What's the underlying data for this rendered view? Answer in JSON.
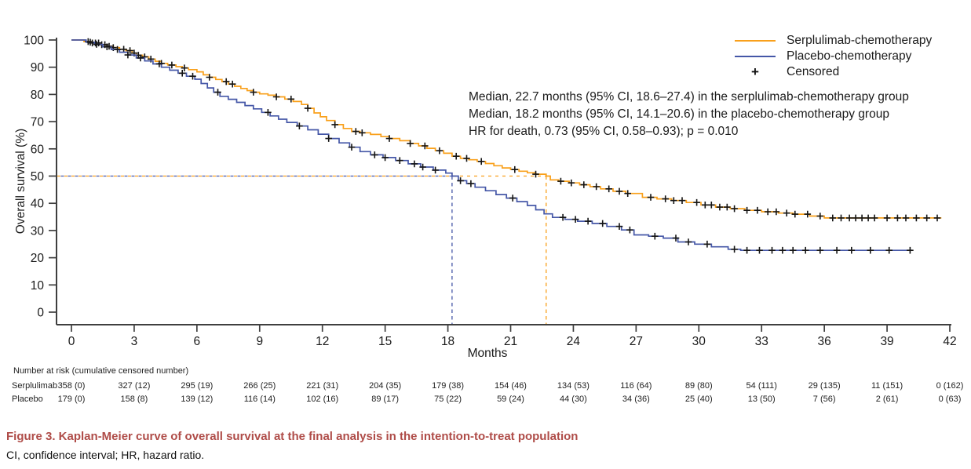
{
  "chart_data": {
    "type": "line",
    "subtype": "kaplan-meier-step",
    "xlabel": "Months",
    "ylabel": "Overall survival (%)",
    "xlim": [
      0,
      42
    ],
    "ylim": [
      0,
      100
    ],
    "x_ticks": [
      0,
      3,
      6,
      9,
      12,
      15,
      18,
      21,
      24,
      27,
      30,
      33,
      36,
      39,
      42
    ],
    "y_ticks": [
      0,
      10,
      20,
      30,
      40,
      50,
      60,
      70,
      80,
      90,
      100
    ],
    "grid": false,
    "legend_position": "top-right",
    "median_reference_percent": 50,
    "series": [
      {
        "name": "Serplulimab-chemotherapy",
        "color": "#F9A01B",
        "median_months": 22.7,
        "steps": [
          [
            0,
            100
          ],
          [
            0.6,
            99.4
          ],
          [
            1,
            98.9
          ],
          [
            1.4,
            98.3
          ],
          [
            1.7,
            97.7
          ],
          [
            2,
            97.2
          ],
          [
            2.3,
            96.6
          ],
          [
            2.6,
            96.1
          ],
          [
            2.9,
            95.2
          ],
          [
            3.1,
            94.4
          ],
          [
            3.4,
            93.8
          ],
          [
            3.7,
            93
          ],
          [
            4,
            92.2
          ],
          [
            4.3,
            91.4
          ],
          [
            4.6,
            90.8
          ],
          [
            5,
            90.2
          ],
          [
            5.3,
            89.7
          ],
          [
            5.6,
            89.1
          ],
          [
            6,
            88.3
          ],
          [
            6.3,
            87.2
          ],
          [
            6.6,
            86.3
          ],
          [
            6.9,
            85.5
          ],
          [
            7.2,
            84.7
          ],
          [
            7.5,
            83.8
          ],
          [
            7.8,
            83
          ],
          [
            8.1,
            82.2
          ],
          [
            8.4,
            81.4
          ],
          [
            8.7,
            80.8
          ],
          [
            9,
            80.2
          ],
          [
            9.4,
            79.7
          ],
          [
            9.8,
            79.1
          ],
          [
            10.2,
            78.3
          ],
          [
            10.6,
            77.4
          ],
          [
            11,
            76.3
          ],
          [
            11.3,
            74.9
          ],
          [
            11.6,
            73.2
          ],
          [
            11.9,
            71.8
          ],
          [
            12.2,
            70.4
          ],
          [
            12.6,
            68.9
          ],
          [
            13,
            67.5
          ],
          [
            13.4,
            66.4
          ],
          [
            13.8,
            65.9
          ],
          [
            14.3,
            65.3
          ],
          [
            14.8,
            64.5
          ],
          [
            15.2,
            63.8
          ],
          [
            15.7,
            63
          ],
          [
            16.2,
            62
          ],
          [
            16.6,
            61.1
          ],
          [
            17,
            60.2
          ],
          [
            17.4,
            59.3
          ],
          [
            17.8,
            58.4
          ],
          [
            18.2,
            57.3
          ],
          [
            18.6,
            56.5
          ],
          [
            19,
            56
          ],
          [
            19.4,
            55.4
          ],
          [
            19.8,
            54.6
          ],
          [
            20.2,
            53.8
          ],
          [
            20.6,
            53
          ],
          [
            21,
            52.4
          ],
          [
            21.4,
            51.8
          ],
          [
            21.8,
            51.2
          ],
          [
            22.2,
            50.7
          ],
          [
            22.7,
            50
          ],
          [
            22.9,
            48.6
          ],
          [
            23.3,
            48.1
          ],
          [
            23.8,
            47.5
          ],
          [
            24.3,
            46.8
          ],
          [
            24.8,
            46.1
          ],
          [
            25.3,
            45.3
          ],
          [
            25.9,
            44.4
          ],
          [
            26.5,
            43.6
          ],
          [
            27.3,
            42.2
          ],
          [
            28,
            41.6
          ],
          [
            28.7,
            41
          ],
          [
            29.4,
            40.3
          ],
          [
            30.1,
            39.4
          ],
          [
            30.8,
            38.6
          ],
          [
            31.5,
            38
          ],
          [
            32.2,
            37.4
          ],
          [
            33,
            36.9
          ],
          [
            33.8,
            36.4
          ],
          [
            34.5,
            36
          ],
          [
            35.3,
            35.3
          ],
          [
            36,
            34.6
          ],
          [
            41.6,
            34.6
          ]
        ],
        "censor_months": [
          0.8,
          1,
          1.15,
          1.3,
          1.45,
          1.6,
          1.8,
          2,
          2.5,
          2.8,
          3,
          3.2,
          3.5,
          3.8,
          4.3,
          4.8,
          5.4,
          6.6,
          7.4,
          7.7,
          8.7,
          9.8,
          10.5,
          11.3,
          12.6,
          13.6,
          13.9,
          15.2,
          16.2,
          16.9,
          17.6,
          18.4,
          18.9,
          19.6,
          21.2,
          22.2,
          23.4,
          23.9,
          24.5,
          25.1,
          25.7,
          26.2,
          26.6,
          27.7,
          28.4,
          28.8,
          29.2,
          29.9,
          30.3,
          30.6,
          31,
          31.35,
          31.7,
          32.3,
          32.8,
          33.3,
          33.7,
          34.2,
          34.6,
          35.2,
          35.8,
          36.4,
          36.8,
          37.2,
          37.5,
          37.8,
          38.1,
          38.4,
          39,
          39.5,
          39.9,
          40.4,
          40.9,
          41.4
        ]
      },
      {
        "name": "Placebo-chemotherapy",
        "color": "#4557A7",
        "median_months": 18.2,
        "steps": [
          [
            0,
            100
          ],
          [
            0.7,
            99.2
          ],
          [
            1.1,
            98.4
          ],
          [
            1.5,
            97.5
          ],
          [
            1.9,
            96.5
          ],
          [
            2.3,
            95.5
          ],
          [
            2.7,
            94.5
          ],
          [
            3.1,
            93.4
          ],
          [
            3.5,
            92.3
          ],
          [
            3.9,
            91.2
          ],
          [
            4.3,
            90
          ],
          [
            4.7,
            88.9
          ],
          [
            5.1,
            87.8
          ],
          [
            5.5,
            86.7
          ],
          [
            5.9,
            85.6
          ],
          [
            6.2,
            84
          ],
          [
            6.5,
            82.4
          ],
          [
            6.8,
            80.8
          ],
          [
            7.1,
            79.3
          ],
          [
            7.5,
            78.2
          ],
          [
            7.9,
            77.1
          ],
          [
            8.3,
            75.9
          ],
          [
            8.7,
            74.7
          ],
          [
            9.1,
            73.4
          ],
          [
            9.5,
            72.1
          ],
          [
            9.9,
            70.9
          ],
          [
            10.3,
            69.7
          ],
          [
            10.8,
            68.4
          ],
          [
            11.3,
            67
          ],
          [
            11.8,
            65.4
          ],
          [
            12.3,
            63.8
          ],
          [
            12.8,
            62.2
          ],
          [
            13.3,
            60.6
          ],
          [
            13.8,
            59
          ],
          [
            14.3,
            57.8
          ],
          [
            14.9,
            56.8
          ],
          [
            15.5,
            55.7
          ],
          [
            16.1,
            54.5
          ],
          [
            16.7,
            53.3
          ],
          [
            17.3,
            52.2
          ],
          [
            17.9,
            51.1
          ],
          [
            18.2,
            50
          ],
          [
            18.5,
            48.3
          ],
          [
            18.9,
            47.2
          ],
          [
            19.3,
            45.9
          ],
          [
            19.8,
            44.6
          ],
          [
            20.3,
            43.2
          ],
          [
            20.8,
            41.9
          ],
          [
            21.3,
            40.6
          ],
          [
            21.8,
            39.2
          ],
          [
            22.2,
            37.6
          ],
          [
            22.6,
            36.1
          ],
          [
            23,
            34.8
          ],
          [
            23.6,
            34.1
          ],
          [
            24.2,
            33.4
          ],
          [
            24.9,
            32.6
          ],
          [
            25.6,
            31.5
          ],
          [
            26.3,
            30.2
          ],
          [
            26.9,
            28.4
          ],
          [
            27.6,
            27.9
          ],
          [
            28.3,
            27.2
          ],
          [
            29,
            25.8
          ],
          [
            29.8,
            25
          ],
          [
            30.6,
            24
          ],
          [
            31.4,
            23.1
          ],
          [
            32,
            22.7
          ],
          [
            40.2,
            22.7
          ]
        ],
        "censor_months": [
          0.9,
          1.2,
          1.7,
          2.2,
          2.7,
          3.3,
          4.2,
          5.3,
          5.8,
          7,
          9.4,
          10.9,
          12.3,
          13.4,
          14.5,
          15,
          15.7,
          16.4,
          16.8,
          17.4,
          18.6,
          19.1,
          21.1,
          23.5,
          24.1,
          24.7,
          25.4,
          26.2,
          26.7,
          27.9,
          28.9,
          29.5,
          30.4,
          31.7,
          32.3,
          32.9,
          33.5,
          34,
          34.5,
          35.1,
          35.8,
          36.6,
          37.3,
          38.2,
          39.1,
          40.1
        ]
      }
    ],
    "censor_marker": "+"
  },
  "legend": {
    "entries": [
      {
        "label": "Serplulimab-chemotherapy"
      },
      {
        "label": "Placebo-chemotherapy"
      },
      {
        "label": "Censored",
        "marker": "+"
      }
    ]
  },
  "annotation": {
    "line1": "Median, 22.7 months (95% CI, 18.6–27.4) in the serplulimab-chemotherapy group",
    "line2": "Median, 18.2 months (95% CI, 14.1–20.6) in the placebo-chemotherapy group",
    "line3": "HR for death, 0.73 (95% CI, 0.58–0.93); p = 0.010"
  },
  "risk_table": {
    "header": "Number at risk (cumulative censored number)",
    "rows": [
      {
        "label": "Serplulimab",
        "values": [
          "358 (0)",
          "327 (12)",
          "295 (19)",
          "266 (25)",
          "221 (31)",
          "204 (35)",
          "179 (38)",
          "154 (46)",
          "134 (53)",
          "116 (64)",
          "89 (80)",
          "54 (111)",
          "29 (135)",
          "11 (151)",
          "0 (162)"
        ]
      },
      {
        "label": "Placebo",
        "values": [
          "179 (0)",
          "158 (8)",
          "139 (12)",
          "116 (14)",
          "102 (16)",
          "89 (17)",
          "75 (22)",
          "59 (24)",
          "44 (30)",
          "34 (36)",
          "25 (40)",
          "13 (50)",
          "7 (56)",
          "2 (61)",
          "0 (63)"
        ]
      }
    ]
  },
  "caption": {
    "title": "Figure 3.  Kaplan-Meier curve of overall survival at the final analysis in the intention-to-treat population",
    "footnote": "CI, confidence interval; HR, hazard ratio."
  },
  "colors": {
    "serplulimab": "#F9A01B",
    "placebo": "#4557A7",
    "censor": "#141414",
    "axis": "#3f3f3f",
    "caption_title": "#AF4C48",
    "text": "#1b1b1b"
  }
}
